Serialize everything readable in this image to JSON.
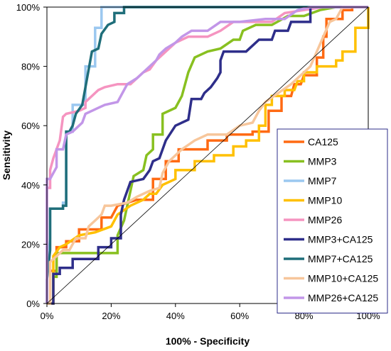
{
  "chart_data": {
    "type": "line",
    "xlabel": "100% - Specificity",
    "ylabel": "Sensitivity",
    "xlim": [
      0,
      100
    ],
    "ylim": [
      0,
      100
    ],
    "x_tick_labels": [
      "0%",
      "20%",
      "40%",
      "60%",
      "80%",
      "100%"
    ],
    "y_tick_labels": [
      "0%",
      "20%",
      "40%",
      "60%",
      "80%",
      "100%"
    ],
    "x_ticks": [
      0,
      20,
      40,
      60,
      80,
      100
    ],
    "y_ticks": [
      0,
      20,
      40,
      60,
      80,
      100
    ],
    "grid": false,
    "legend_position": "bottom-right",
    "reference_line": {
      "from": [
        0,
        0
      ],
      "to": [
        100,
        100
      ],
      "color": "#000000"
    },
    "series": [
      {
        "name": "CA125",
        "color": "#FF6A13",
        "points": [
          [
            0,
            11
          ],
          [
            3,
            11
          ],
          [
            3,
            19
          ],
          [
            6,
            19
          ],
          [
            6,
            21
          ],
          [
            10,
            21
          ],
          [
            10,
            25
          ],
          [
            17,
            25
          ],
          [
            17,
            29
          ],
          [
            20,
            29
          ],
          [
            22,
            33
          ],
          [
            28,
            35
          ],
          [
            33,
            35
          ],
          [
            33,
            42
          ],
          [
            37,
            42
          ],
          [
            37,
            48
          ],
          [
            41,
            48
          ],
          [
            41,
            52
          ],
          [
            50,
            52
          ],
          [
            50,
            55
          ],
          [
            56,
            55
          ],
          [
            56,
            57
          ],
          [
            64,
            57
          ],
          [
            64,
            58
          ],
          [
            69,
            58
          ],
          [
            69,
            65
          ],
          [
            73,
            65
          ],
          [
            73,
            70
          ],
          [
            76,
            70
          ],
          [
            77,
            74
          ],
          [
            79,
            74
          ],
          [
            80,
            77
          ],
          [
            84,
            77
          ],
          [
            84,
            83
          ],
          [
            86,
            83
          ],
          [
            86,
            90
          ],
          [
            87,
            90
          ],
          [
            87,
            96
          ],
          [
            92,
            96
          ],
          [
            92,
            99
          ],
          [
            95,
            99
          ],
          [
            95,
            100
          ],
          [
            100,
            100
          ]
        ]
      },
      {
        "name": "MMP3",
        "color": "#88C020",
        "points": [
          [
            0,
            0
          ],
          [
            2,
            0
          ],
          [
            2,
            9
          ],
          [
            3,
            9
          ],
          [
            3,
            17
          ],
          [
            16,
            17
          ],
          [
            22,
            17
          ],
          [
            22,
            23
          ],
          [
            24,
            28
          ],
          [
            26,
            38
          ],
          [
            27,
            43
          ],
          [
            30,
            45
          ],
          [
            31,
            50
          ],
          [
            33,
            52
          ],
          [
            33,
            57
          ],
          [
            36,
            57
          ],
          [
            36,
            64
          ],
          [
            40,
            66
          ],
          [
            42,
            70
          ],
          [
            44,
            78
          ],
          [
            46,
            83
          ],
          [
            50,
            85
          ],
          [
            54,
            86
          ],
          [
            58,
            89
          ],
          [
            60,
            89
          ],
          [
            61,
            92
          ],
          [
            65,
            94
          ],
          [
            70,
            94
          ],
          [
            75,
            97
          ],
          [
            80,
            97
          ],
          [
            85,
            99
          ],
          [
            90,
            100
          ],
          [
            100,
            100
          ]
        ]
      },
      {
        "name": "MMP7",
        "color": "#9BC8F0",
        "points": [
          [
            0,
            0
          ],
          [
            0,
            8
          ],
          [
            1,
            22
          ],
          [
            1,
            32
          ],
          [
            5,
            32
          ],
          [
            5,
            34
          ],
          [
            6,
            34
          ],
          [
            6,
            58
          ],
          [
            8,
            58
          ],
          [
            8,
            67
          ],
          [
            12,
            67
          ],
          [
            12,
            80
          ],
          [
            15,
            80
          ],
          [
            15,
            93
          ],
          [
            17,
            93
          ],
          [
            17,
            100
          ],
          [
            100,
            100
          ]
        ]
      },
      {
        "name": "MMP10",
        "color": "#FFC000",
        "points": [
          [
            0,
            0
          ],
          [
            2,
            0
          ],
          [
            2,
            16
          ],
          [
            4,
            19
          ],
          [
            6,
            20
          ],
          [
            10,
            23
          ],
          [
            15,
            24
          ],
          [
            20,
            26
          ],
          [
            22,
            30
          ],
          [
            26,
            33
          ],
          [
            30,
            35
          ],
          [
            32,
            37
          ],
          [
            34,
            37
          ],
          [
            36,
            40
          ],
          [
            40,
            42
          ],
          [
            40,
            45
          ],
          [
            46,
            45
          ],
          [
            46,
            48
          ],
          [
            52,
            48
          ],
          [
            52,
            50
          ],
          [
            58,
            50
          ],
          [
            58,
            53
          ],
          [
            62,
            53
          ],
          [
            62,
            55
          ],
          [
            66,
            55
          ],
          [
            66,
            60
          ],
          [
            68,
            60
          ],
          [
            68,
            67
          ],
          [
            70,
            67
          ],
          [
            70,
            70
          ],
          [
            74,
            70
          ],
          [
            74,
            72
          ],
          [
            77,
            72
          ],
          [
            78,
            75
          ],
          [
            80,
            75
          ],
          [
            80,
            78
          ],
          [
            84,
            78
          ],
          [
            84,
            80
          ],
          [
            90,
            80
          ],
          [
            90,
            82
          ],
          [
            92,
            82
          ],
          [
            92,
            85
          ],
          [
            96,
            85
          ],
          [
            96,
            93
          ],
          [
            100,
            93
          ],
          [
            100,
            100
          ]
        ]
      },
      {
        "name": "MMP26",
        "color": "#F594C0",
        "points": [
          [
            0,
            0
          ],
          [
            0,
            39
          ],
          [
            1,
            39
          ],
          [
            1,
            45
          ],
          [
            2,
            49
          ],
          [
            4,
            55
          ],
          [
            5,
            63
          ],
          [
            6,
            64
          ],
          [
            10,
            65
          ],
          [
            12,
            66
          ],
          [
            12,
            68
          ],
          [
            14,
            70
          ],
          [
            16,
            72
          ],
          [
            18,
            73
          ],
          [
            22,
            74
          ],
          [
            26,
            74
          ],
          [
            28,
            76
          ],
          [
            30,
            78
          ],
          [
            32,
            79
          ],
          [
            34,
            82
          ],
          [
            36,
            84
          ],
          [
            38,
            86
          ],
          [
            40,
            88
          ],
          [
            44,
            90
          ],
          [
            50,
            90
          ],
          [
            54,
            92
          ],
          [
            58,
            95
          ],
          [
            64,
            95
          ],
          [
            70,
            95
          ],
          [
            74,
            98
          ],
          [
            80,
            99
          ],
          [
            86,
            100
          ],
          [
            100,
            100
          ]
        ]
      },
      {
        "name": "MMP3+CA125",
        "color": "#2E2E8A",
        "points": [
          [
            0,
            0
          ],
          [
            2,
            0
          ],
          [
            2,
            10
          ],
          [
            4,
            10
          ],
          [
            4,
            12
          ],
          [
            8,
            12
          ],
          [
            8,
            15
          ],
          [
            16,
            15
          ],
          [
            16,
            19
          ],
          [
            20,
            19
          ],
          [
            20,
            22
          ],
          [
            23,
            22
          ],
          [
            23,
            30
          ],
          [
            24,
            35
          ],
          [
            26,
            41
          ],
          [
            30,
            42
          ],
          [
            32,
            45
          ],
          [
            33,
            48
          ],
          [
            35,
            49
          ],
          [
            37,
            55
          ],
          [
            40,
            60
          ],
          [
            44,
            62
          ],
          [
            45,
            69
          ],
          [
            48,
            69
          ],
          [
            49,
            71
          ],
          [
            51,
            73
          ],
          [
            53,
            76
          ],
          [
            54,
            78
          ],
          [
            54,
            82
          ],
          [
            55,
            85
          ],
          [
            62,
            85
          ],
          [
            66,
            89
          ],
          [
            70,
            89
          ],
          [
            71,
            92
          ],
          [
            75,
            92
          ],
          [
            76,
            95
          ],
          [
            82,
            95
          ],
          [
            82,
            100
          ],
          [
            100,
            100
          ]
        ]
      },
      {
        "name": "MMP7+CA125",
        "color": "#1F6E7A",
        "points": [
          [
            0,
            0
          ],
          [
            0,
            8
          ],
          [
            1,
            18
          ],
          [
            1,
            32
          ],
          [
            5,
            32
          ],
          [
            5,
            33
          ],
          [
            6,
            33
          ],
          [
            6,
            58
          ],
          [
            7,
            58
          ],
          [
            8,
            60
          ],
          [
            9,
            64
          ],
          [
            11,
            67
          ],
          [
            12,
            73
          ],
          [
            14,
            85
          ],
          [
            16,
            86
          ],
          [
            17,
            91
          ],
          [
            19,
            94
          ],
          [
            21,
            95
          ],
          [
            21,
            98
          ],
          [
            24,
            98
          ],
          [
            24,
            100
          ],
          [
            100,
            100
          ]
        ]
      },
      {
        "name": "MMP10+CA125",
        "color": "#F7C69B",
        "points": [
          [
            0,
            0
          ],
          [
            1,
            0
          ],
          [
            1,
            14
          ],
          [
            3,
            16
          ],
          [
            5,
            18
          ],
          [
            7,
            18
          ],
          [
            9,
            22
          ],
          [
            12,
            22
          ],
          [
            13,
            26
          ],
          [
            15,
            28
          ],
          [
            17,
            30
          ],
          [
            18,
            33
          ],
          [
            20,
            33
          ],
          [
            25,
            34
          ],
          [
            28,
            36
          ],
          [
            32,
            38
          ],
          [
            35,
            39
          ],
          [
            36,
            44
          ],
          [
            38,
            48
          ],
          [
            42,
            52
          ],
          [
            46,
            55
          ],
          [
            50,
            57
          ],
          [
            56,
            57
          ],
          [
            60,
            60
          ],
          [
            64,
            61
          ],
          [
            66,
            65
          ],
          [
            68,
            68
          ],
          [
            72,
            71
          ],
          [
            76,
            74
          ],
          [
            80,
            78
          ],
          [
            82,
            80
          ],
          [
            84,
            85
          ],
          [
            86,
            90
          ],
          [
            88,
            95
          ],
          [
            90,
            96
          ],
          [
            92,
            100
          ],
          [
            100,
            100
          ]
        ]
      },
      {
        "name": "MMP26+CA125",
        "color": "#C296E8",
        "points": [
          [
            0,
            0
          ],
          [
            0,
            42
          ],
          [
            1,
            42
          ],
          [
            2,
            44
          ],
          [
            3,
            46
          ],
          [
            3,
            52
          ],
          [
            5,
            52
          ],
          [
            6,
            57
          ],
          [
            8,
            58
          ],
          [
            10,
            60
          ],
          [
            11,
            61
          ],
          [
            12,
            64
          ],
          [
            14,
            65
          ],
          [
            16,
            66
          ],
          [
            18,
            67
          ],
          [
            22,
            68
          ],
          [
            25,
            74
          ],
          [
            28,
            76
          ],
          [
            30,
            78
          ],
          [
            32,
            80
          ],
          [
            34,
            82
          ],
          [
            35,
            84
          ],
          [
            37,
            86
          ],
          [
            40,
            88
          ],
          [
            42,
            90
          ],
          [
            45,
            92
          ],
          [
            50,
            92
          ],
          [
            54,
            95
          ],
          [
            60,
            95
          ],
          [
            68,
            96
          ],
          [
            74,
            96
          ],
          [
            78,
            99
          ],
          [
            82,
            100
          ],
          [
            100,
            100
          ]
        ]
      }
    ]
  }
}
